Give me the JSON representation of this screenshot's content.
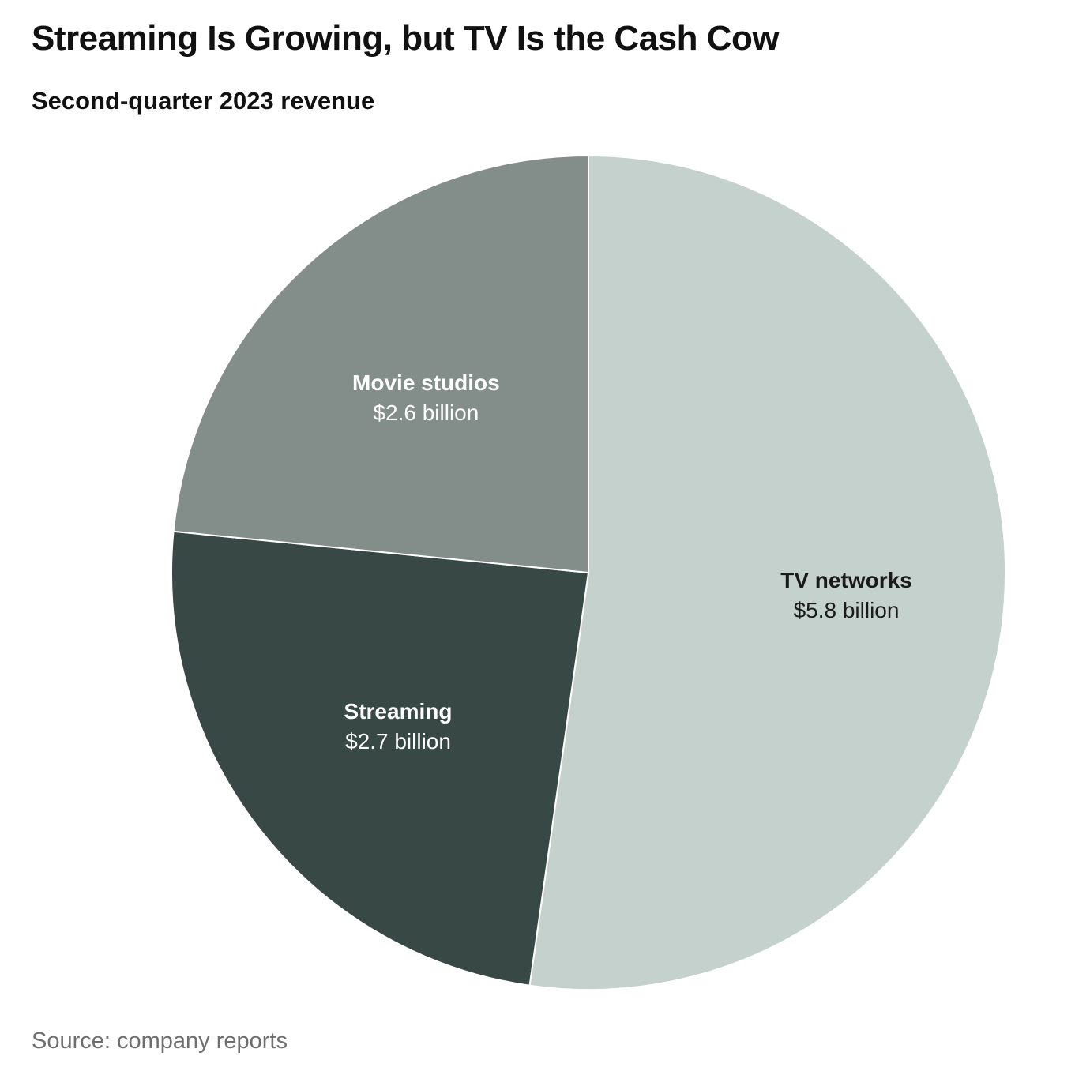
{
  "chart_data": {
    "type": "pie",
    "title": "Streaming Is Growing, but TV Is the Cash Cow",
    "subtitle": "Second-quarter 2023 revenue",
    "source": "Source: company reports",
    "slices": [
      {
        "name": "TV networks",
        "value": 5.8,
        "value_label": "$5.8 billion",
        "color": "#c5d1cc",
        "text_color": "#1a1a1a"
      },
      {
        "name": "Streaming",
        "value": 2.7,
        "value_label": "$2.7 billion",
        "color": "#384845",
        "text_color": "#ffffff"
      },
      {
        "name": "Movie studios",
        "value": 2.6,
        "value_label": "$2.6 billion",
        "color": "#838d8a",
        "text_color": "#ffffff"
      }
    ],
    "start": "12 o'clock",
    "direction": "clockwise",
    "units": "billion USD"
  }
}
